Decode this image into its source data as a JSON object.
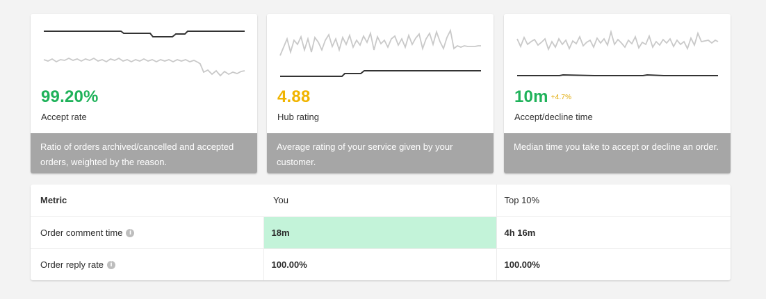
{
  "cards": [
    {
      "value": "99.20%",
      "delta": "",
      "label": "Accept rate",
      "description": "Ratio of orders archived/cancelled and accepted orders, weighted by the reason.",
      "color": "#1fb25a"
    },
    {
      "value": "4.88",
      "delta": "",
      "label": "Hub rating",
      "description": "Average rating of your service given by your customer.",
      "color": "#f0b400"
    },
    {
      "value": "10m",
      "delta": "+4.7%",
      "label": "Accept/decline time",
      "description": "Median time you take to accept or decline an order.",
      "color": "#1fb25a"
    }
  ],
  "table": {
    "headers": [
      "Metric",
      "You",
      "Top 10%"
    ],
    "rows": [
      {
        "metric": "Order comment time",
        "you": "18m",
        "top": "4h 16m",
        "highlight": true
      },
      {
        "metric": "Order reply rate",
        "you": "100.00%",
        "top": "100.00%",
        "highlight": false
      }
    ],
    "info_icon": "info-icon"
  }
}
